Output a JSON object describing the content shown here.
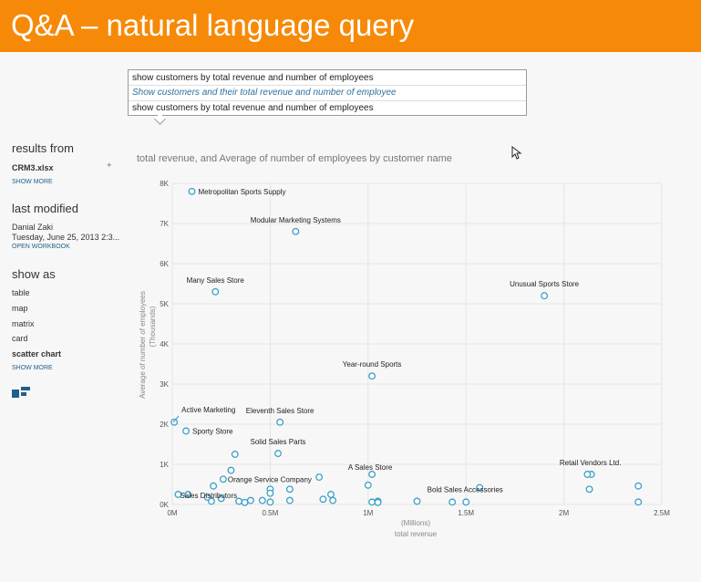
{
  "banner": {
    "title": "Q&A – natural language query"
  },
  "query_box": {
    "suggestions": [
      "show customers by total revenue and number of employees",
      "Show customers and their total revenue and number of employee",
      "show customers by total revenue and number of employees"
    ]
  },
  "sidebar": {
    "results_from": {
      "heading": "results from",
      "file": "CRM3.xlsx",
      "link": "SHOW MORE"
    },
    "last_modified": {
      "heading": "last modified",
      "user": "Danial Zaki",
      "date": "Tuesday, June 25, 2013 2:3...",
      "link": "OPEN WORKBOOK"
    },
    "show_as": {
      "heading": "show as",
      "items": [
        "table",
        "map",
        "matrix",
        "card",
        "scatter chart"
      ],
      "selected": "scatter chart",
      "link": "SHOW MORE"
    },
    "accent_color": "#1f5f8b"
  },
  "chart_title": "total revenue, and Average of number of employees by customer name",
  "chart_data": {
    "type": "scatter",
    "title": "total revenue, and Average of number of employees by customer name",
    "xlabel": "total revenue",
    "xunit": "(Millions)",
    "ylabel": "Average of number of employees",
    "yunit": "(Thousands)",
    "xlim": [
      0,
      2.5
    ],
    "ylim": [
      0,
      8
    ],
    "x_ticks": [
      "0M",
      "0.5M",
      "1M",
      "1.5M",
      "2M",
      "2.5M"
    ],
    "y_ticks": [
      "0K",
      "1K",
      "2K",
      "3K",
      "4K",
      "5K",
      "6K",
      "7K",
      "8K"
    ],
    "grid": true,
    "point_color": "#3aa0c8",
    "points": [
      {
        "x": 0.1,
        "y": 7.8,
        "label": "Metropolitan Sports Supply"
      },
      {
        "x": 0.63,
        "y": 6.8,
        "label": "Modular Marketing Systems"
      },
      {
        "x": 0.22,
        "y": 5.3,
        "label": "Many Sales Store"
      },
      {
        "x": 1.9,
        "y": 5.2,
        "label": "Unusual Sports Store"
      },
      {
        "x": 1.02,
        "y": 3.2,
        "label": "Year-round Sports"
      },
      {
        "x": 0.01,
        "y": 2.05,
        "label": "Active Marketing"
      },
      {
        "x": 0.55,
        "y": 2.05,
        "label": "Eleventh Sales Store"
      },
      {
        "x": 0.07,
        "y": 1.83,
        "label": "Sporty Store"
      },
      {
        "x": 0.54,
        "y": 1.27,
        "label": "Solid Sales Parts"
      },
      {
        "x": 0.26,
        "y": 0.63,
        "label": "Orange Service Company"
      },
      {
        "x": 1.02,
        "y": 0.75,
        "label": "A Sales Store"
      },
      {
        "x": 1.57,
        "y": 0.42,
        "label": "Bold Sales Accessories"
      },
      {
        "x": 2.14,
        "y": 0.75,
        "label": "Retail Vendors Ltd."
      },
      {
        "x": 0.03,
        "y": 0.25,
        "label": "Sales Distributors"
      },
      {
        "x": 0.32,
        "y": 1.25,
        "label": ""
      },
      {
        "x": 0.3,
        "y": 0.85,
        "label": ""
      },
      {
        "x": 0.21,
        "y": 0.46,
        "label": ""
      },
      {
        "x": 0.08,
        "y": 0.25,
        "label": ""
      },
      {
        "x": 0.18,
        "y": 0.18,
        "label": ""
      },
      {
        "x": 0.25,
        "y": 0.15,
        "label": ""
      },
      {
        "x": 0.2,
        "y": 0.08,
        "label": ""
      },
      {
        "x": 0.34,
        "y": 0.08,
        "label": ""
      },
      {
        "x": 0.37,
        "y": 0.05,
        "label": ""
      },
      {
        "x": 0.4,
        "y": 0.1,
        "label": ""
      },
      {
        "x": 0.46,
        "y": 0.1,
        "label": ""
      },
      {
        "x": 0.5,
        "y": 0.38,
        "label": ""
      },
      {
        "x": 0.5,
        "y": 0.28,
        "label": ""
      },
      {
        "x": 0.5,
        "y": 0.06,
        "label": ""
      },
      {
        "x": 0.6,
        "y": 0.38,
        "label": ""
      },
      {
        "x": 0.6,
        "y": 0.1,
        "label": ""
      },
      {
        "x": 0.75,
        "y": 0.68,
        "label": ""
      },
      {
        "x": 0.77,
        "y": 0.13,
        "label": ""
      },
      {
        "x": 0.81,
        "y": 0.25,
        "label": ""
      },
      {
        "x": 0.82,
        "y": 0.1,
        "label": ""
      },
      {
        "x": 1.0,
        "y": 0.48,
        "label": ""
      },
      {
        "x": 1.02,
        "y": 0.06,
        "label": ""
      },
      {
        "x": 1.05,
        "y": 0.08,
        "label": ""
      },
      {
        "x": 1.05,
        "y": 0.05,
        "label": ""
      },
      {
        "x": 1.25,
        "y": 0.08,
        "label": ""
      },
      {
        "x": 1.43,
        "y": 0.06,
        "label": ""
      },
      {
        "x": 1.5,
        "y": 0.06,
        "label": ""
      },
      {
        "x": 2.12,
        "y": 0.75,
        "label": ""
      },
      {
        "x": 2.13,
        "y": 0.38,
        "label": ""
      },
      {
        "x": 2.38,
        "y": 0.46,
        "label": ""
      },
      {
        "x": 2.38,
        "y": 0.06,
        "label": ""
      }
    ]
  }
}
